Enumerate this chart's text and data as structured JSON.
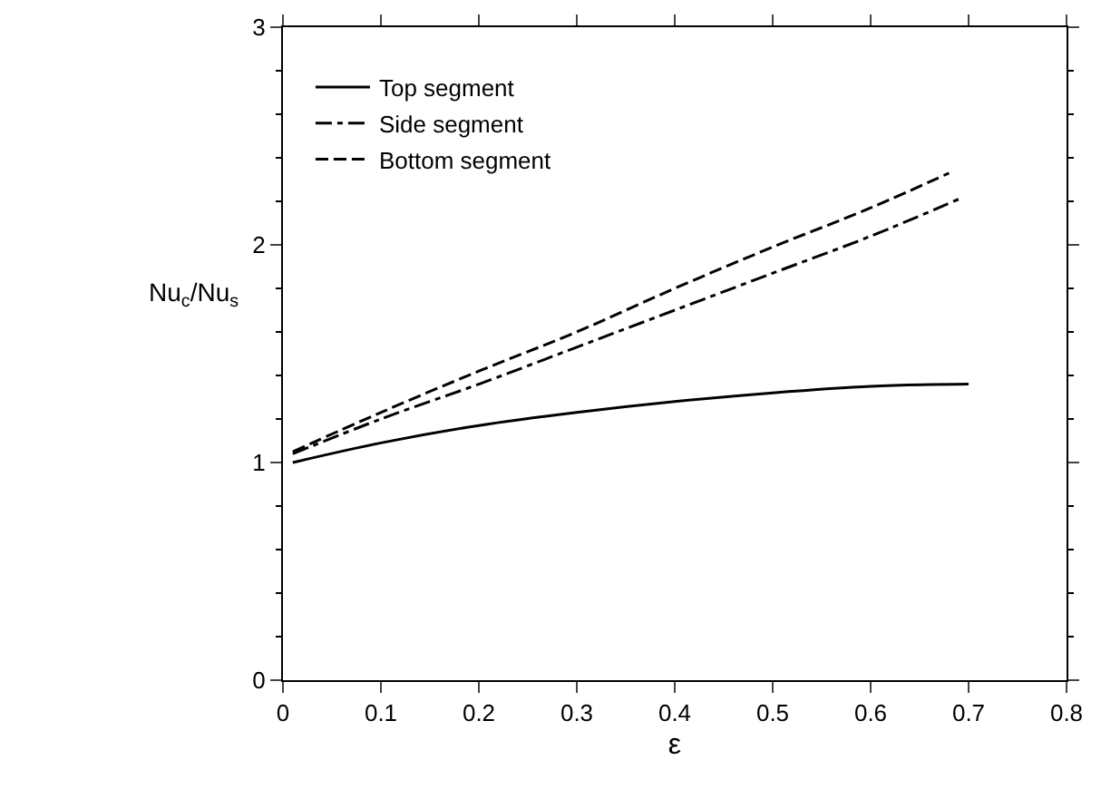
{
  "chart_data": {
    "type": "line",
    "xlabel": "ε",
    "ylabel": "Nu$_{c}$/Nu$_{s}$",
    "xlim": [
      0,
      0.8
    ],
    "ylim": [
      0,
      3
    ],
    "xticks": [
      0,
      0.1,
      0.2,
      0.3,
      0.4,
      0.5,
      0.6,
      0.7,
      0.8
    ],
    "yticks": [
      0,
      1,
      2,
      3
    ],
    "legend": "top left",
    "grid": false,
    "series": [
      {
        "name": "Top segment",
        "color": "#000000",
        "line_style": "solid",
        "x": [
          0.01,
          0.1,
          0.2,
          0.3,
          0.4,
          0.5,
          0.6,
          0.7
        ],
        "values": [
          1.0,
          1.09,
          1.17,
          1.23,
          1.28,
          1.32,
          1.35,
          1.36
        ]
      },
      {
        "name": "Side segment",
        "color": "#000000",
        "line_style": "dashdot",
        "x": [
          0.01,
          0.1,
          0.2,
          0.3,
          0.4,
          0.5,
          0.6,
          0.69
        ],
        "values": [
          1.04,
          1.2,
          1.36,
          1.53,
          1.7,
          1.87,
          2.04,
          2.21
        ]
      },
      {
        "name": "Bottom segment",
        "color": "#000000",
        "line_style": "dashed",
        "x": [
          0.01,
          0.1,
          0.2,
          0.3,
          0.4,
          0.5,
          0.6,
          0.68
        ],
        "values": [
          1.05,
          1.23,
          1.42,
          1.6,
          1.8,
          1.99,
          2.17,
          2.33
        ]
      }
    ]
  }
}
